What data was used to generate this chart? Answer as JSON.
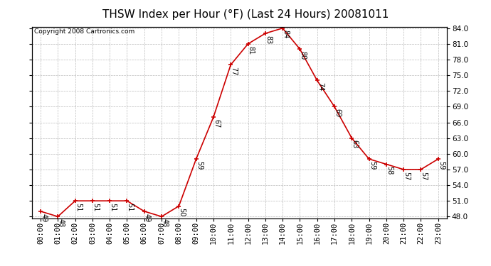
{
  "title": "THSW Index per Hour (°F) (Last 24 Hours) 20081011",
  "copyright": "Copyright 2008 Cartronics.com",
  "hours": [
    "00:00",
    "01:00",
    "02:00",
    "03:00",
    "04:00",
    "05:00",
    "06:00",
    "07:00",
    "08:00",
    "09:00",
    "10:00",
    "11:00",
    "12:00",
    "13:00",
    "14:00",
    "15:00",
    "16:00",
    "17:00",
    "18:00",
    "19:00",
    "20:00",
    "21:00",
    "22:00",
    "23:00"
  ],
  "values": [
    49,
    48,
    51,
    51,
    51,
    51,
    49,
    48,
    50,
    59,
    67,
    77,
    81,
    83,
    84,
    80,
    74,
    69,
    63,
    59,
    58,
    57,
    57,
    59
  ],
  "ylim_min": 48.0,
  "ylim_max": 84.0,
  "ytick_step": 3.0,
  "line_color": "#cc0000",
  "marker_color": "#cc0000",
  "bg_color": "#ffffff",
  "grid_color": "#bbbbbb",
  "title_fontsize": 11,
  "label_fontsize": 7,
  "copyright_fontsize": 6.5,
  "axis_tick_fontsize": 7.5
}
